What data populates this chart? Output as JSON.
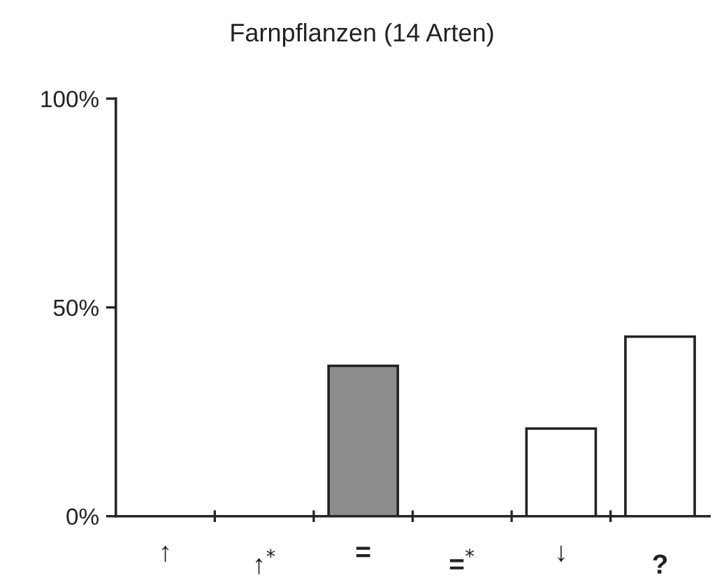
{
  "chart_data": {
    "type": "bar",
    "title": "Farnpflanzen (14 Arten)",
    "categories": [
      "↑",
      "↑$^{*}$",
      "=",
      "=$^{*}$",
      "↓",
      "?"
    ],
    "values": [
      0,
      0,
      36,
      0,
      21,
      43
    ],
    "colors": [
      "#ffffff",
      "#ffffff",
      "#8c8c8c",
      "#ffffff",
      "#ffffff",
      "#ffffff"
    ],
    "ylim": [
      0,
      100
    ],
    "yticks": [
      {
        "value": 0,
        "label": "0%"
      },
      {
        "value": 50,
        "label": "50%"
      },
      {
        "value": 100,
        "label": "100%"
      }
    ],
    "grid": false,
    "legend": false
  }
}
